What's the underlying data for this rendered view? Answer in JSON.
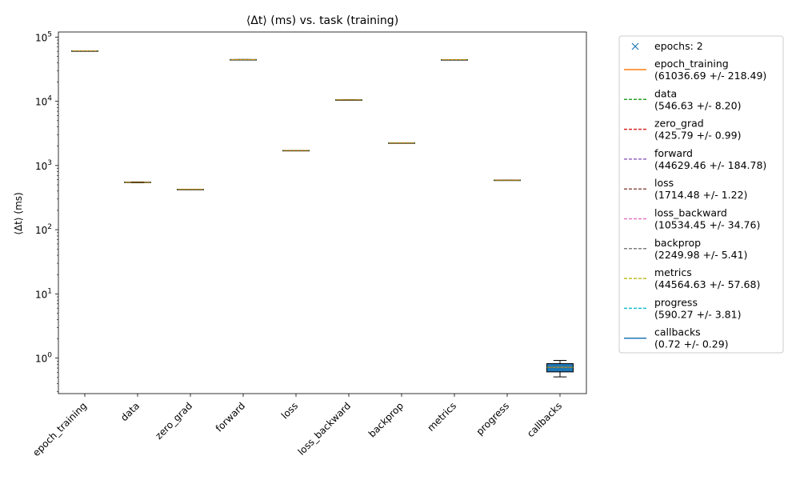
{
  "chart_data": {
    "type": "box",
    "title": "⟨Δt⟩ (ms) vs. task (training)",
    "ylabel": "⟨Δt⟩ (ms)",
    "xlabel": "",
    "yscale": "log",
    "ylim": [
      0.28,
      120000
    ],
    "yticks": [
      {
        "value": 1,
        "label": "10^0"
      },
      {
        "value": 10,
        "label": "10^1"
      },
      {
        "value": 100,
        "label": "10^2"
      },
      {
        "value": 1000,
        "label": "10^3"
      },
      {
        "value": 10000,
        "label": "10^4"
      },
      {
        "value": 100000,
        "label": "10^5"
      }
    ],
    "categories": [
      "epoch_training",
      "data",
      "zero_grad",
      "forward",
      "loss",
      "loss_backward",
      "backprop",
      "metrics",
      "progress",
      "callbacks"
    ],
    "boxes": [
      {
        "name": "epoch_training",
        "q1": 60900,
        "median": 61036.69,
        "q3": 61170,
        "whislo": 60800,
        "whishi": 61250,
        "mean": 61036.69
      },
      {
        "name": "data",
        "q1": 542,
        "median": 546.63,
        "q3": 551,
        "whislo": 538,
        "whishi": 555,
        "mean": 546.63
      },
      {
        "name": "zero_grad",
        "q1": 425.3,
        "median": 425.79,
        "q3": 426.3,
        "whislo": 424.8,
        "whishi": 426.8,
        "mean": 425.79
      },
      {
        "name": "forward",
        "q1": 44500,
        "median": 44629.46,
        "q3": 44760,
        "whislo": 44450,
        "whishi": 44810,
        "mean": 44629.46
      },
      {
        "name": "loss",
        "q1": 1713.9,
        "median": 1714.48,
        "q3": 1715.1,
        "whislo": 1713.3,
        "whishi": 1715.7,
        "mean": 1714.48
      },
      {
        "name": "loss_backward",
        "q1": 10510,
        "median": 10534.45,
        "q3": 10560,
        "whislo": 10500,
        "whishi": 10570,
        "mean": 10534.45
      },
      {
        "name": "backprop",
        "q1": 2246,
        "median": 2249.98,
        "q3": 2254,
        "whislo": 2244,
        "whishi": 2256,
        "mean": 2249.98
      },
      {
        "name": "metrics",
        "q1": 44520,
        "median": 44564.63,
        "q3": 44610,
        "whislo": 44500,
        "whishi": 44630,
        "mean": 44564.63
      },
      {
        "name": "progress",
        "q1": 587.6,
        "median": 590.27,
        "q3": 592.9,
        "whislo": 586.5,
        "whishi": 594,
        "mean": 590.27
      },
      {
        "name": "callbacks",
        "q1": 0.61,
        "median": 0.72,
        "q3": 0.82,
        "whislo": 0.51,
        "whishi": 0.92,
        "mean": 0.72
      }
    ],
    "legend": {
      "placement": "outside-right",
      "entries": [
        {
          "line1": "epochs: 2",
          "line2": "",
          "color": "#1f77b4",
          "style": "marker-x"
        },
        {
          "line1": "epoch_training",
          "line2": "(61036.69 +/- 218.49)",
          "color": "#ff7f0e",
          "style": "solid"
        },
        {
          "line1": "data",
          "line2": "(546.63 +/- 8.20)",
          "color": "#2ca02c",
          "style": "dashed"
        },
        {
          "line1": "zero_grad",
          "line2": "(425.79 +/- 0.99)",
          "color": "#d62728",
          "style": "dashed"
        },
        {
          "line1": "forward",
          "line2": "(44629.46 +/- 184.78)",
          "color": "#9467bd",
          "style": "dashed"
        },
        {
          "line1": "loss",
          "line2": "(1714.48 +/- 1.22)",
          "color": "#8c564b",
          "style": "dashed"
        },
        {
          "line1": "loss_backward",
          "line2": "(10534.45 +/- 34.76)",
          "color": "#e377c2",
          "style": "dashed"
        },
        {
          "line1": "backprop",
          "line2": "(2249.98 +/- 5.41)",
          "color": "#7f7f7f",
          "style": "dashed"
        },
        {
          "line1": "metrics",
          "line2": "(44564.63 +/- 57.68)",
          "color": "#bcbd22",
          "style": "dashed"
        },
        {
          "line1": "progress",
          "line2": "(590.27 +/- 3.81)",
          "color": "#17becf",
          "style": "dashed"
        },
        {
          "line1": "callbacks",
          "line2": "(0.72 +/- 0.29)",
          "color": "#1f77b4",
          "style": "solid"
        }
      ]
    },
    "colors": {
      "box_fill": "#1f77b4",
      "median": "#ff7f0e",
      "whisker": "#000000",
      "axis": "#000000"
    }
  }
}
